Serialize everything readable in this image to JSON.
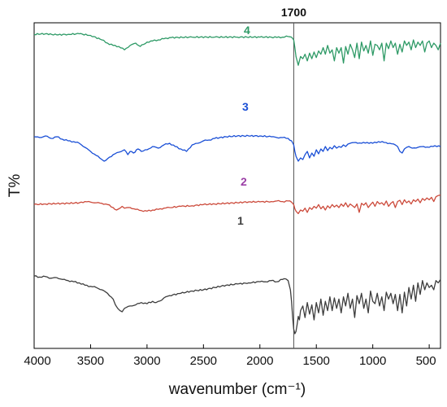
{
  "chart_data": {
    "type": "line",
    "title": "",
    "xlabel": "wavenumber (cm⁻¹)",
    "ylabel": "T%",
    "xlim": [
      4000,
      400
    ],
    "x_reversed": true,
    "x_ticks": [
      4000,
      3500,
      3000,
      2500,
      2000,
      1500,
      1000,
      500
    ],
    "y_ticks_shown": false,
    "grid": false,
    "legend": "labels beside curves",
    "reference_line": {
      "x": 1700,
      "label": "1700"
    },
    "series": [
      {
        "name": "4",
        "color": "#2e9a66",
        "x": [
          4000,
          3900,
          3800,
          3700,
          3600,
          3500,
          3400,
          3350,
          3300,
          3250,
          3200,
          3150,
          3100,
          3060,
          3000,
          2950,
          2900,
          2850,
          2800,
          2600,
          2400,
          2200,
          2000,
          1900,
          1850,
          1800,
          1750,
          1720,
          1700,
          1690,
          1680,
          1670,
          1660,
          1640,
          1620,
          1600,
          1580,
          1560,
          1540,
          1520,
          1500,
          1480,
          1460,
          1440,
          1420,
          1400,
          1380,
          1360,
          1340,
          1320,
          1300,
          1280,
          1260,
          1240,
          1220,
          1200,
          1180,
          1160,
          1140,
          1120,
          1100,
          1080,
          1060,
          1040,
          1020,
          1000,
          980,
          960,
          940,
          920,
          900,
          880,
          860,
          840,
          820,
          800,
          780,
          760,
          740,
          720,
          700,
          680,
          660,
          640,
          620,
          600,
          580,
          560,
          540,
          520,
          500,
          480,
          460,
          440,
          420,
          400
        ],
        "y": [
          94,
          94.5,
          93.5,
          94,
          94.5,
          93,
          89,
          86,
          84,
          83,
          80,
          84,
          86,
          83,
          87,
          88,
          89,
          90,
          91,
          91.5,
          91.5,
          91.5,
          91.5,
          91.5,
          91.2,
          91.5,
          92,
          91.5,
          89,
          82,
          74,
          70,
          66,
          74,
          72,
          76,
          70,
          77,
          72,
          78,
          73,
          79,
          76,
          82,
          76,
          84,
          77,
          80,
          70,
          82,
          77,
          82,
          68,
          83,
          76,
          85,
          80,
          73,
          86,
          72,
          87,
          79,
          84,
          77,
          88,
          75,
          85,
          84,
          80,
          86,
          70,
          86,
          81,
          88,
          82,
          86,
          76,
          85,
          78,
          88,
          84,
          87,
          80,
          89,
          82,
          87,
          84,
          88,
          78,
          86,
          88,
          82,
          86,
          84,
          80,
          86
        ]
      },
      {
        "name": "3",
        "color": "#1a4fd6",
        "x": [
          4000,
          3950,
          3900,
          3850,
          3800,
          3750,
          3700,
          3650,
          3600,
          3550,
          3500,
          3450,
          3420,
          3400,
          3380,
          3350,
          3300,
          3250,
          3200,
          3170,
          3150,
          3120,
          3080,
          3050,
          3000,
          2950,
          2900,
          2850,
          2800,
          2750,
          2700,
          2650,
          2600,
          2550,
          2500,
          2450,
          2400,
          2300,
          2200,
          2100,
          2000,
          1900,
          1850,
          1800,
          1750,
          1720,
          1700,
          1690,
          1680,
          1670,
          1660,
          1640,
          1620,
          1600,
          1580,
          1560,
          1540,
          1520,
          1500,
          1480,
          1460,
          1440,
          1420,
          1400,
          1380,
          1360,
          1340,
          1320,
          1300,
          1280,
          1260,
          1240,
          1220,
          1200,
          1150,
          1100,
          1050,
          1000,
          950,
          900,
          850,
          800,
          780,
          760,
          740,
          720,
          700,
          680,
          650,
          600,
          550,
          500,
          450,
          400
        ],
        "y": [
          70,
          69,
          71,
          68,
          70,
          67,
          65,
          64,
          62,
          57,
          52,
          47,
          44,
          42,
          40,
          43,
          48,
          51,
          54,
          48,
          52,
          50,
          55,
          52,
          54,
          58,
          56,
          60,
          62,
          58,
          55,
          52,
          60,
          62,
          65,
          66,
          68,
          70,
          71,
          71,
          71,
          70,
          69,
          69,
          68,
          65,
          60,
          52,
          46,
          43,
          40,
          44,
          42,
          48,
          52,
          44,
          50,
          46,
          54,
          49,
          55,
          52,
          58,
          53,
          57,
          55,
          59,
          56,
          58,
          57,
          60,
          58,
          61,
          62,
          63,
          62,
          63,
          62,
          64,
          63,
          62,
          60,
          58,
          52,
          50,
          55,
          57,
          58,
          56,
          57,
          58,
          57,
          59,
          58
        ]
      },
      {
        "name": "2",
        "color": "#cc4a3b",
        "x": [
          4000,
          3900,
          3800,
          3700,
          3600,
          3550,
          3500,
          3450,
          3400,
          3350,
          3300,
          3270,
          3250,
          3220,
          3200,
          3150,
          3100,
          3050,
          3000,
          2950,
          2900,
          2850,
          2800,
          2700,
          2600,
          2500,
          2400,
          2300,
          2200,
          2100,
          2000,
          1900,
          1850,
          1800,
          1750,
          1720,
          1700,
          1690,
          1680,
          1670,
          1660,
          1640,
          1620,
          1600,
          1580,
          1560,
          1540,
          1520,
          1500,
          1480,
          1460,
          1440,
          1420,
          1400,
          1380,
          1360,
          1340,
          1320,
          1300,
          1280,
          1260,
          1240,
          1220,
          1200,
          1180,
          1160,
          1140,
          1120,
          1100,
          1080,
          1060,
          1040,
          1020,
          1000,
          980,
          960,
          940,
          920,
          900,
          880,
          860,
          840,
          820,
          800,
          780,
          760,
          740,
          720,
          700,
          680,
          660,
          640,
          620,
          600,
          580,
          560,
          540,
          520,
          500,
          480,
          460,
          440,
          420,
          400
        ],
        "y": [
          55,
          56,
          56.5,
          57,
          58,
          60,
          59,
          58,
          57,
          55,
          50,
          46,
          48,
          52,
          49,
          50,
          47,
          45,
          44,
          46,
          47,
          49,
          50,
          52,
          53,
          55,
          56,
          57,
          58,
          59.5,
          59.5,
          60,
          61,
          60,
          61,
          59,
          55,
          48,
          44,
          42,
          40,
          46,
          44,
          49,
          42,
          50,
          47,
          52,
          49,
          55,
          48,
          52,
          46,
          53,
          49,
          55,
          51,
          54,
          50,
          56,
          52,
          58,
          51,
          56,
          53,
          50,
          56,
          42,
          57,
          54,
          58,
          50,
          55,
          59,
          52,
          60,
          56,
          58,
          54,
          61,
          52,
          57,
          60,
          50,
          60,
          62,
          55,
          63,
          58,
          61,
          56,
          63,
          60,
          64,
          58,
          65,
          62,
          66,
          63,
          67,
          60,
          68,
          70,
          71
        ]
      },
      {
        "name": "1",
        "color": "#3d3d3d",
        "x": [
          4000,
          3950,
          3900,
          3850,
          3800,
          3750,
          3700,
          3650,
          3600,
          3550,
          3500,
          3450,
          3400,
          3350,
          3300,
          3280,
          3260,
          3240,
          3220,
          3200,
          3150,
          3100,
          3050,
          3000,
          2950,
          2920,
          2900,
          2870,
          2850,
          2800,
          2700,
          2600,
          2500,
          2400,
          2300,
          2200,
          2100,
          2000,
          1950,
          1900,
          1850,
          1800,
          1770,
          1750,
          1730,
          1720,
          1710,
          1700,
          1690,
          1680,
          1670,
          1660,
          1650,
          1640,
          1620,
          1600,
          1580,
          1560,
          1540,
          1520,
          1500,
          1480,
          1460,
          1440,
          1420,
          1400,
          1380,
          1360,
          1340,
          1320,
          1300,
          1280,
          1260,
          1240,
          1220,
          1200,
          1180,
          1160,
          1140,
          1120,
          1100,
          1080,
          1060,
          1040,
          1020,
          1000,
          980,
          960,
          940,
          920,
          900,
          880,
          860,
          840,
          820,
          800,
          780,
          760,
          740,
          720,
          700,
          680,
          660,
          640,
          620,
          600,
          580,
          560,
          540,
          520,
          500,
          480,
          460,
          440,
          420,
          400
        ],
        "y": [
          50,
          49,
          49.5,
          48,
          48.5,
          47,
          46,
          45,
          44,
          42,
          41,
          40,
          38,
          35,
          30,
          25,
          22,
          20,
          19,
          22,
          24,
          25,
          27,
          26,
          28,
          27,
          28,
          29,
          31,
          33,
          35,
          37,
          38,
          40,
          42,
          43,
          44,
          45,
          45,
          46,
          45,
          47,
          47.5,
          46,
          38,
          28,
          14,
          4,
          0,
          2,
          8,
          15,
          12,
          20,
          24,
          14,
          27,
          17,
          25,
          12,
          27,
          18,
          30,
          16,
          28,
          20,
          32,
          20,
          31,
          22,
          30,
          18,
          32,
          24,
          35,
          22,
          30,
          14,
          33,
          26,
          35,
          22,
          30,
          18,
          37,
          28,
          26,
          35,
          24,
          32,
          20,
          36,
          30,
          35,
          26,
          34,
          20,
          34,
          18,
          36,
          24,
          40,
          30,
          42,
          28,
          44,
          34,
          46,
          38,
          44,
          40,
          42,
          38,
          46,
          44,
          47
        ]
      }
    ]
  }
}
